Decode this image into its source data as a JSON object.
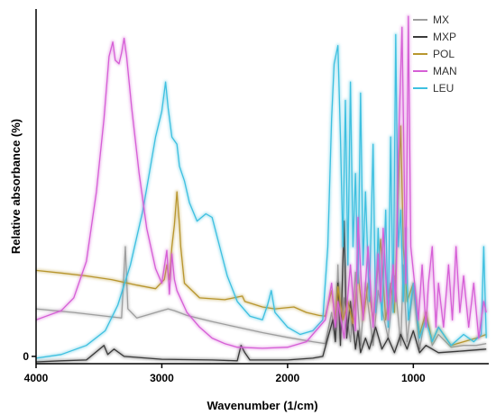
{
  "chart_data": {
    "type": "line",
    "xlabel": "Wavenumber (1/cm)",
    "ylabel": "Relative absorbance (%)",
    "xlim": [
      4000,
      400
    ],
    "ylim": [
      -0.2,
      9.5
    ],
    "x_reversed": true,
    "xticks": [
      4000,
      3000,
      2000,
      1000
    ],
    "yticks": [
      0
    ],
    "grid": false,
    "legend_position": "top-right",
    "series": [
      {
        "name": "MX",
        "color": "#9e9e9e",
        "points": [
          [
            4000,
            1.3
          ],
          [
            3700,
            1.2
          ],
          [
            3400,
            1.08
          ],
          [
            3320,
            1.05
          ],
          [
            3290,
            3.0
          ],
          [
            3270,
            1.3
          ],
          [
            3200,
            1.05
          ],
          [
            3100,
            1.15
          ],
          [
            3000,
            1.25
          ],
          [
            2950,
            1.3
          ],
          [
            2900,
            1.25
          ],
          [
            2800,
            1.12
          ],
          [
            2600,
            0.95
          ],
          [
            2400,
            0.8
          ],
          [
            2200,
            0.65
          ],
          [
            2000,
            0.52
          ],
          [
            1800,
            0.4
          ],
          [
            1700,
            0.35
          ],
          [
            1650,
            1.2
          ],
          [
            1620,
            0.5
          ],
          [
            1600,
            2.5
          ],
          [
            1580,
            0.5
          ],
          [
            1550,
            1.6
          ],
          [
            1500,
            0.4
          ],
          [
            1460,
            2.3
          ],
          [
            1420,
            0.3
          ],
          [
            1380,
            2.0
          ],
          [
            1320,
            0.3
          ],
          [
            1280,
            1.8
          ],
          [
            1200,
            0.5
          ],
          [
            1150,
            2.2
          ],
          [
            1100,
            0.3
          ],
          [
            1080,
            2.5
          ],
          [
            1050,
            0.4
          ],
          [
            1000,
            1.9
          ],
          [
            950,
            0.2
          ],
          [
            900,
            1.2
          ],
          [
            850,
            0.3
          ],
          [
            800,
            0.6
          ],
          [
            700,
            0.25
          ],
          [
            600,
            0.3
          ],
          [
            500,
            0.3
          ],
          [
            420,
            0.35
          ]
        ]
      },
      {
        "name": "MXP",
        "color": "#3a3a3a",
        "points": [
          [
            4000,
            -0.15
          ],
          [
            3800,
            -0.12
          ],
          [
            3600,
            -0.1
          ],
          [
            3460,
            0.3
          ],
          [
            3430,
            0.05
          ],
          [
            3380,
            0.2
          ],
          [
            3300,
            0.0
          ],
          [
            3000,
            -0.08
          ],
          [
            2600,
            -0.1
          ],
          [
            2400,
            -0.12
          ],
          [
            2370,
            0.3
          ],
          [
            2340,
            0.1
          ],
          [
            2300,
            -0.1
          ],
          [
            2000,
            -0.1
          ],
          [
            1800,
            -0.05
          ],
          [
            1720,
            0.0
          ],
          [
            1680,
            0.5
          ],
          [
            1640,
            1.0
          ],
          [
            1620,
            0.4
          ],
          [
            1600,
            2.0
          ],
          [
            1580,
            0.3
          ],
          [
            1550,
            3.7
          ],
          [
            1530,
            0.5
          ],
          [
            1500,
            1.5
          ],
          [
            1460,
            0.2
          ],
          [
            1440,
            0.7
          ],
          [
            1420,
            0.1
          ],
          [
            1380,
            0.5
          ],
          [
            1350,
            0.2
          ],
          [
            1300,
            0.8
          ],
          [
            1250,
            0.2
          ],
          [
            1200,
            0.5
          ],
          [
            1150,
            0.1
          ],
          [
            1100,
            0.6
          ],
          [
            1050,
            0.2
          ],
          [
            1000,
            0.7
          ],
          [
            950,
            0.1
          ],
          [
            900,
            0.3
          ],
          [
            800,
            0.1
          ],
          [
            600,
            0.15
          ],
          [
            420,
            0.2
          ]
        ]
      },
      {
        "name": "POL",
        "color": "#b8962e",
        "points": [
          [
            4000,
            2.35
          ],
          [
            3800,
            2.28
          ],
          [
            3600,
            2.2
          ],
          [
            3400,
            2.1
          ],
          [
            3200,
            1.95
          ],
          [
            3050,
            1.85
          ],
          [
            2980,
            2.1
          ],
          [
            2960,
            2.5
          ],
          [
            2940,
            2.1
          ],
          [
            2920,
            3.0
          ],
          [
            2900,
            3.6
          ],
          [
            2880,
            4.5
          ],
          [
            2860,
            3.6
          ],
          [
            2850,
            3.0
          ],
          [
            2820,
            2.0
          ],
          [
            2700,
            1.6
          ],
          [
            2500,
            1.55
          ],
          [
            2360,
            1.65
          ],
          [
            2340,
            1.5
          ],
          [
            2200,
            1.35
          ],
          [
            2100,
            1.3
          ],
          [
            1950,
            1.35
          ],
          [
            1850,
            1.2
          ],
          [
            1750,
            1.12
          ],
          [
            1700,
            1.1
          ],
          [
            1650,
            1.8
          ],
          [
            1620,
            1.0
          ],
          [
            1600,
            1.9
          ],
          [
            1560,
            1.0
          ],
          [
            1520,
            1.5
          ],
          [
            1480,
            0.9
          ],
          [
            1440,
            2.3
          ],
          [
            1400,
            1.0
          ],
          [
            1360,
            2.0
          ],
          [
            1320,
            1.0
          ],
          [
            1260,
            3.2
          ],
          [
            1220,
            1.0
          ],
          [
            1180,
            2.0
          ],
          [
            1150,
            1.2
          ],
          [
            1120,
            4.5
          ],
          [
            1100,
            6.3
          ],
          [
            1080,
            3.0
          ],
          [
            1050,
            1.5
          ],
          [
            1000,
            2.0
          ],
          [
            950,
            0.6
          ],
          [
            900,
            1.2
          ],
          [
            850,
            0.4
          ],
          [
            800,
            0.8
          ],
          [
            700,
            0.3
          ],
          [
            600,
            0.4
          ],
          [
            500,
            0.5
          ],
          [
            420,
            0.6
          ]
        ]
      },
      {
        "name": "MAN",
        "color": "#d65fd6",
        "points": [
          [
            4000,
            1.0
          ],
          [
            3800,
            1.25
          ],
          [
            3700,
            1.6
          ],
          [
            3600,
            2.6
          ],
          [
            3520,
            4.5
          ],
          [
            3460,
            6.5
          ],
          [
            3420,
            8.2
          ],
          [
            3390,
            8.6
          ],
          [
            3370,
            8.1
          ],
          [
            3340,
            8.0
          ],
          [
            3320,
            8.3
          ],
          [
            3300,
            8.7
          ],
          [
            3280,
            8.2
          ],
          [
            3240,
            6.8
          ],
          [
            3180,
            5.0
          ],
          [
            3120,
            3.5
          ],
          [
            3050,
            2.4
          ],
          [
            3000,
            2.0
          ],
          [
            2960,
            2.9
          ],
          [
            2940,
            1.7
          ],
          [
            2920,
            2.8
          ],
          [
            2900,
            2.1
          ],
          [
            2880,
            1.8
          ],
          [
            2800,
            1.2
          ],
          [
            2700,
            0.8
          ],
          [
            2600,
            0.5
          ],
          [
            2500,
            0.35
          ],
          [
            2400,
            0.25
          ],
          [
            2200,
            0.22
          ],
          [
            2000,
            0.25
          ],
          [
            1850,
            0.4
          ],
          [
            1750,
            0.8
          ],
          [
            1700,
            1.0
          ],
          [
            1650,
            2.0
          ],
          [
            1620,
            0.8
          ],
          [
            1600,
            1.5
          ],
          [
            1550,
            0.5
          ],
          [
            1500,
            2.5
          ],
          [
            1460,
            0.7
          ],
          [
            1440,
            3.8
          ],
          [
            1400,
            1.0
          ],
          [
            1360,
            3.0
          ],
          [
            1320,
            0.8
          ],
          [
            1280,
            2.8
          ],
          [
            1260,
            1.5
          ],
          [
            1240,
            3.5
          ],
          [
            1200,
            1.0
          ],
          [
            1160,
            2.5
          ],
          [
            1140,
            1.5
          ],
          [
            1120,
            5.5
          ],
          [
            1090,
            9.0
          ],
          [
            1060,
            2.0
          ],
          [
            1040,
            9.3
          ],
          [
            1020,
            3.0
          ],
          [
            990,
            2.0
          ],
          [
            960,
            1.0
          ],
          [
            930,
            2.5
          ],
          [
            900,
            0.8
          ],
          [
            880,
            2.0
          ],
          [
            850,
            3.0
          ],
          [
            820,
            0.8
          ],
          [
            800,
            2.0
          ],
          [
            760,
            0.8
          ],
          [
            720,
            2.5
          ],
          [
            690,
            1.0
          ],
          [
            660,
            3.0
          ],
          [
            630,
            1.2
          ],
          [
            600,
            2.2
          ],
          [
            560,
            0.8
          ],
          [
            520,
            2.0
          ],
          [
            480,
            0.5
          ],
          [
            440,
            1.5
          ],
          [
            420,
            1.2
          ]
        ]
      },
      {
        "name": "LEU",
        "color": "#3ec0e0",
        "points": [
          [
            4000,
            -0.05
          ],
          [
            3800,
            0.05
          ],
          [
            3600,
            0.3
          ],
          [
            3450,
            0.7
          ],
          [
            3350,
            1.4
          ],
          [
            3250,
            2.5
          ],
          [
            3150,
            4.0
          ],
          [
            3100,
            5.0
          ],
          [
            3050,
            6.0
          ],
          [
            3000,
            6.7
          ],
          [
            2970,
            7.5
          ],
          [
            2950,
            6.8
          ],
          [
            2920,
            6.0
          ],
          [
            2880,
            5.8
          ],
          [
            2860,
            5.2
          ],
          [
            2820,
            4.8
          ],
          [
            2780,
            4.2
          ],
          [
            2720,
            3.7
          ],
          [
            2650,
            3.9
          ],
          [
            2600,
            3.8
          ],
          [
            2540,
            3.0
          ],
          [
            2480,
            2.2
          ],
          [
            2400,
            1.5
          ],
          [
            2300,
            1.1
          ],
          [
            2200,
            1.0
          ],
          [
            2160,
            1.4
          ],
          [
            2130,
            1.8
          ],
          [
            2100,
            1.2
          ],
          [
            2000,
            0.8
          ],
          [
            1900,
            0.6
          ],
          [
            1800,
            0.7
          ],
          [
            1720,
            1.0
          ],
          [
            1680,
            3.0
          ],
          [
            1650,
            6.5
          ],
          [
            1630,
            8.0
          ],
          [
            1600,
            8.5
          ],
          [
            1580,
            6.0
          ],
          [
            1560,
            3.0
          ],
          [
            1540,
            7.0
          ],
          [
            1520,
            2.5
          ],
          [
            1500,
            7.5
          ],
          [
            1480,
            3.0
          ],
          [
            1460,
            5.0
          ],
          [
            1440,
            2.0
          ],
          [
            1420,
            7.2
          ],
          [
            1400,
            2.5
          ],
          [
            1380,
            4.5
          ],
          [
            1350,
            1.5
          ],
          [
            1320,
            5.8
          ],
          [
            1300,
            1.2
          ],
          [
            1280,
            3.5
          ],
          [
            1250,
            1.0
          ],
          [
            1220,
            4.0
          ],
          [
            1200,
            0.8
          ],
          [
            1180,
            6.0
          ],
          [
            1160,
            1.2
          ],
          [
            1140,
            8.8
          ],
          [
            1120,
            3.0
          ],
          [
            1100,
            4.0
          ],
          [
            1080,
            1.5
          ],
          [
            1060,
            3.5
          ],
          [
            1040,
            1.0
          ],
          [
            1000,
            2.0
          ],
          [
            950,
            0.5
          ],
          [
            900,
            1.0
          ],
          [
            850,
            0.4
          ],
          [
            800,
            0.8
          ],
          [
            700,
            0.3
          ],
          [
            600,
            0.6
          ],
          [
            520,
            0.4
          ],
          [
            460,
            0.6
          ],
          [
            440,
            3.0
          ],
          [
            420,
            0.5
          ]
        ]
      }
    ]
  }
}
